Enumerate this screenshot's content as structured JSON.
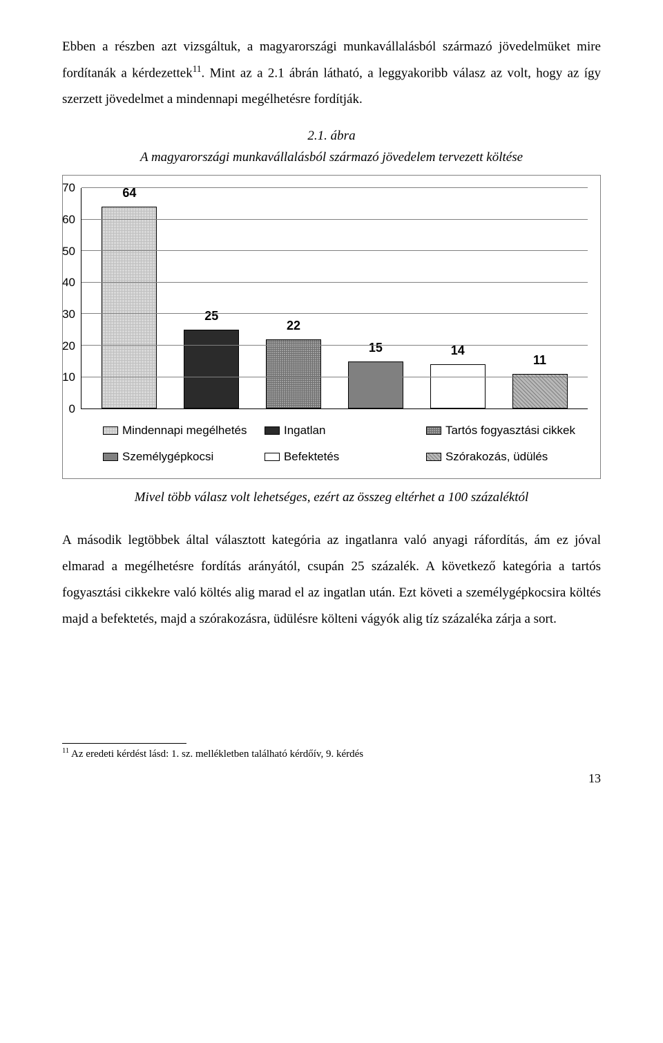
{
  "para1_part1": "Ebben a részben azt vizsgáltuk, a magyarországi munkavállalásból származó jövedelmüket mire fordítanák a kérdezettek",
  "para1_sup": "11",
  "para1_part2": ". Mint az a 2.1 ábrán látható, a leggyakoribb válasz az volt, hogy az így szerzett jövedelmet a mindennapi megélhetésre fordítják.",
  "caption_num": "2.1. ábra",
  "caption_text": "A magyarországi munkavállalásból származó jövedelem tervezett költése",
  "chart": {
    "type": "bar",
    "y_ticks": [
      "70",
      "60",
      "50",
      "40",
      "30",
      "20",
      "10",
      "0"
    ],
    "y_max": 70,
    "gridlines": [
      10,
      20,
      30,
      40,
      50,
      60,
      70
    ],
    "bars": [
      {
        "value": 64,
        "label": "64",
        "pattern": "pattern-a"
      },
      {
        "value": 25,
        "label": "25",
        "pattern": "pattern-b"
      },
      {
        "value": 22,
        "label": "22",
        "pattern": "pattern-c"
      },
      {
        "value": 15,
        "label": "15",
        "pattern": "pattern-d"
      },
      {
        "value": 14,
        "label": "14",
        "pattern": "pattern-e"
      },
      {
        "value": 11,
        "label": "11",
        "pattern": "pattern-f"
      }
    ],
    "legend": [
      {
        "pattern": "pattern-a",
        "label": "Mindennapi megélhetés"
      },
      {
        "pattern": "pattern-b",
        "label": "Ingatlan"
      },
      {
        "pattern": "pattern-c",
        "label": "Tartós fogyasztási cikkek"
      },
      {
        "pattern": "pattern-d",
        "label": "Személygépkocsi"
      },
      {
        "pattern": "pattern-e",
        "label": "Befektetés"
      },
      {
        "pattern": "pattern-f",
        "label": "Szórakozás, üdülés"
      }
    ]
  },
  "note": "Mivel több válasz volt lehetséges, ezért az összeg eltérhet a 100 százaléktól",
  "para2": "A második legtöbbek által választott kategória az ingatlanra való anyagi ráfordítás, ám ez jóval elmarad a megélhetésre fordítás arányától, csupán 25 százalék. A következő kategória a tartós fogyasztási cikkekre való költés alig marad el az ingatlan után. Ezt követi a személygépkocsira költés majd a befektetés, majd a szórakozásra, üdülésre költeni vágyók alig tíz százaléka zárja a sort.",
  "footnote_sup": "11",
  "footnote_text": " Az eredeti kérdést lásd: 1. sz. mellékletben található kérdőív, 9. kérdés",
  "page_number": "13"
}
